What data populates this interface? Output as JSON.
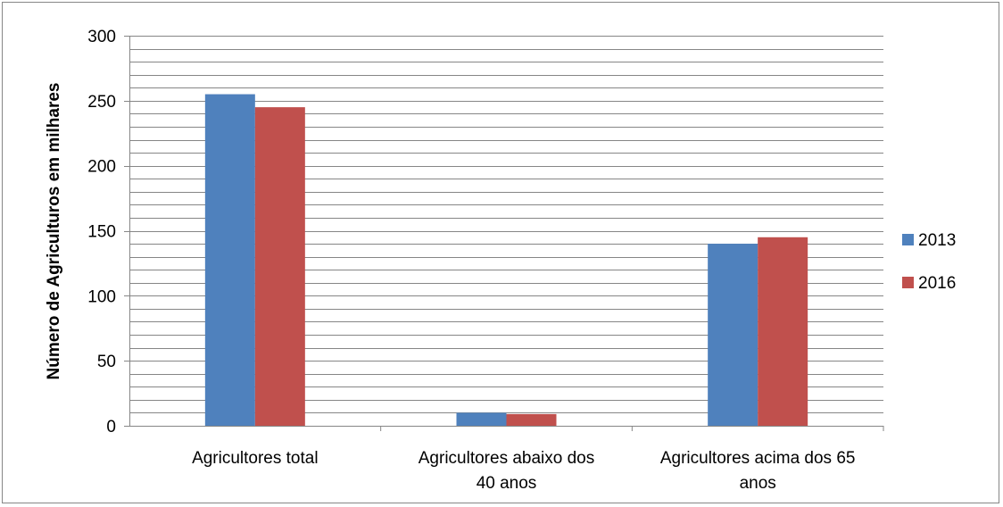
{
  "chart_data": {
    "type": "bar",
    "title": "",
    "xlabel": "",
    "ylabel": "Número de Agriculturos em milhares",
    "ylim": [
      0,
      300
    ],
    "major_ticks": [
      0,
      50,
      100,
      150,
      200,
      250,
      300
    ],
    "minor_step": 10,
    "grid": true,
    "legend_position": "right",
    "categories": [
      [
        "Agricultores total"
      ],
      [
        "Agricultores abaixo dos",
        "40 anos"
      ],
      [
        "Agricultores acima dos 65",
        "anos"
      ]
    ],
    "series": [
      {
        "name": "2013",
        "color": "#4F81BD",
        "values": [
          255,
          10,
          140
        ]
      },
      {
        "name": "2016",
        "color": "#C0504D",
        "values": [
          245,
          9,
          145
        ]
      }
    ]
  }
}
